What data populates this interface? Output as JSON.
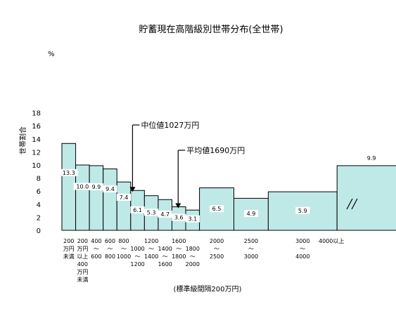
{
  "chart_data": {
    "type": "bar",
    "title": "貯蓄現在高階級別世帯分布(全世帯)",
    "y_unit": "%",
    "ylabel": "世帯割合",
    "xlabel": "(標準級間隔200万円)",
    "ylim": [
      0,
      18
    ],
    "yticks": [
      "0",
      "2",
      "4",
      "6",
      "8",
      "10",
      "12",
      "14",
      "16",
      "18"
    ],
    "categories": [
      "200万円未満",
      "200～400万円未満",
      "400～600",
      "600～800",
      "800～1000",
      "1000～1200",
      "1200～1400",
      "1400～1600",
      "1600～1800",
      "1800～2000",
      "2000～2500",
      "2500～3000",
      "3000～4000",
      "4000以上"
    ],
    "bin_edges": [
      0,
      200,
      400,
      600,
      800,
      1000,
      1200,
      1400,
      1600,
      1800,
      2000,
      2500,
      3000,
      4000,
      5000
    ],
    "values": [
      13.3,
      10.0,
      9.9,
      9.4,
      7.4,
      6.1,
      5.3,
      4.7,
      3.6,
      3.1,
      6.5,
      4.9,
      5.9,
      9.9
    ],
    "value_labels": [
      "13.3",
      "10.0",
      "9.9",
      "9.4",
      "7.4",
      "6.1",
      "5.3",
      "4.7",
      "3.6",
      "3.1",
      "6.5",
      "4.9",
      "5.9",
      "9.9"
    ],
    "x_tick_labels": [
      {
        "lines": [
          "200",
          "万円",
          "未満"
        ]
      },
      {
        "lines": [
          "200",
          "万円",
          "以上",
          "400",
          "万円",
          "未満"
        ]
      },
      {
        "lines": [
          "400",
          "～",
          "600"
        ]
      },
      {
        "lines": [
          "600",
          "～",
          "800"
        ]
      },
      {
        "lines": [
          "800",
          "～",
          "1000"
        ]
      },
      {
        "lines": [
          "",
          "1000",
          "～",
          "1200"
        ]
      },
      {
        "lines": [
          "1200",
          "～",
          "1400"
        ]
      },
      {
        "lines": [
          "",
          "1400",
          "～",
          "1600"
        ]
      },
      {
        "lines": [
          "1600",
          "～",
          "1800"
        ]
      },
      {
        "lines": [
          "",
          "1800",
          "～",
          "2000"
        ]
      },
      {
        "lines": [
          "2000",
          "～",
          "2500"
        ]
      },
      {
        "lines": [
          "2500",
          "～",
          "3000"
        ]
      },
      {
        "lines": [
          "3000",
          "～",
          "4000"
        ]
      },
      {
        "lines": [
          "4000以上"
        ]
      }
    ],
    "annotations": [
      {
        "text": "中位値1027万円",
        "x_value": 1027
      },
      {
        "text": "平均値1690万円",
        "x_value": 1690
      }
    ],
    "colors": {
      "bar_fill": "#bfe9e7",
      "bar_stroke": "#000000",
      "label_bg": "#ffffff"
    }
  }
}
